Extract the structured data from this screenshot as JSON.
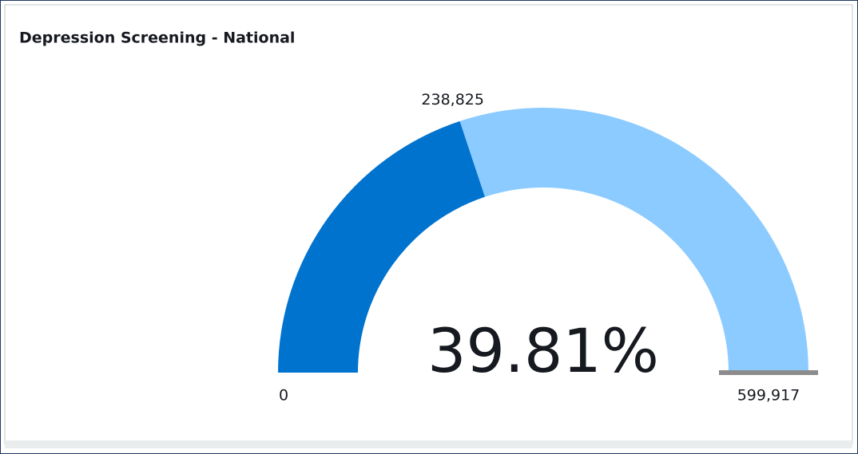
{
  "chart_data": {
    "type": "gauge",
    "title": "Depression Screening - National",
    "values": [
      238825
    ],
    "value_labels": [
      "238,825"
    ],
    "percent": 39.81,
    "percent_label": "39.81%",
    "ylim": [
      0,
      599917
    ],
    "yticks": [
      0,
      {
        "value": 599917,
        "label": "599,917"
      }
    ],
    "color": "#0073cf",
    "track_color": "#8ccbff",
    "target_color": "#8c8c8c"
  }
}
